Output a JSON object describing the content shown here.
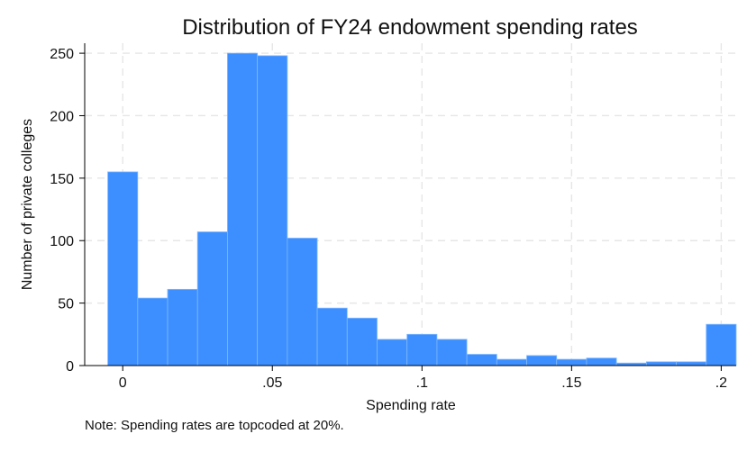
{
  "chart_data": {
    "type": "bar",
    "title": "Distribution of FY24 endowment spending rates",
    "xlabel": "Spending rate",
    "ylabel": "Number of private colleges",
    "note": "Note: Spending rates are topcoded at 20%.",
    "bin_width": 0.01,
    "bin_starts": [
      -0.005,
      0.005,
      0.015,
      0.025,
      0.035,
      0.045,
      0.055,
      0.065,
      0.075,
      0.085,
      0.095,
      0.105,
      0.115,
      0.125,
      0.135,
      0.145,
      0.155,
      0.165,
      0.175,
      0.185,
      0.195
    ],
    "values": [
      155,
      54,
      61,
      107,
      250,
      248,
      102,
      46,
      38,
      21,
      25,
      21,
      9,
      5,
      8,
      5,
      6,
      2,
      3,
      3,
      33
    ],
    "xlim": [
      -0.01,
      0.205
    ],
    "ylim": [
      0,
      258
    ],
    "xticks": [
      {
        "value": 0,
        "label": "0"
      },
      {
        "value": 0.05,
        "label": ".05"
      },
      {
        "value": 0.1,
        "label": ".1"
      },
      {
        "value": 0.15,
        "label": ".15"
      },
      {
        "value": 0.2,
        "label": ".2"
      }
    ],
    "yticks": [
      {
        "value": 0,
        "label": "0"
      },
      {
        "value": 50,
        "label": "50"
      },
      {
        "value": 100,
        "label": "100"
      },
      {
        "value": 150,
        "label": "150"
      },
      {
        "value": 200,
        "label": "200"
      },
      {
        "value": 250,
        "label": "250"
      }
    ],
    "grid": true,
    "colors": {
      "bar": "#3d8fff",
      "bar_edge": "#7fb8ff",
      "grid": "#e6e6e6"
    }
  }
}
